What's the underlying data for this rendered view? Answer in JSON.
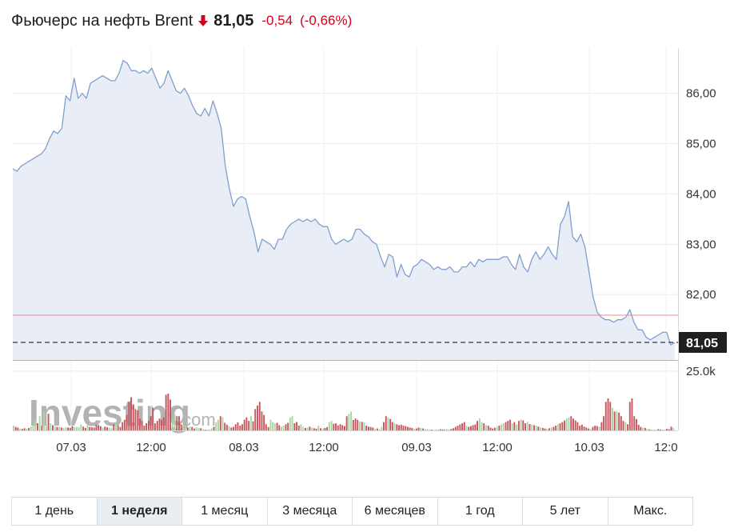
{
  "header": {
    "title": "Фьючерс на нефть Brent",
    "direction_icon": "arrow-down-icon",
    "price": "81,05",
    "change": "-0,54",
    "change_pct": "(-0,66%)",
    "down_color": "#d0021b"
  },
  "watermark": {
    "brand": "Investing",
    "suffix": ".com"
  },
  "tabs": [
    {
      "label": "1 день",
      "active": false
    },
    {
      "label": "1 неделя",
      "active": true
    },
    {
      "label": "1 месяц",
      "active": false
    },
    {
      "label": "3 месяца",
      "active": false
    },
    {
      "label": "6 месяцев",
      "active": false
    },
    {
      "label": "1 год",
      "active": false
    },
    {
      "label": "5 лет",
      "active": false
    },
    {
      "label": "Макс.",
      "active": false
    }
  ],
  "chart_data": {
    "type": "area",
    "price_ylim": [
      80.7,
      86.9
    ],
    "y_ticks": [
      "86,00",
      "85,00",
      "84,00",
      "83,00",
      "82,00"
    ],
    "y_tick_values": [
      86,
      85,
      84,
      83,
      82
    ],
    "current_price_label": "81,05",
    "current_price": 81.05,
    "reference_price": 81.59,
    "x_tick_labels": [
      "07.03",
      "12:00",
      "08.03",
      "12:00",
      "09.03",
      "12:00",
      "10.03",
      "12:0"
    ],
    "line_color": "#7f9fcf",
    "fill_color": "#e9eef6",
    "price": [
      84.5,
      84.45,
      84.55,
      84.6,
      84.65,
      84.7,
      84.75,
      84.8,
      84.9,
      85.1,
      85.25,
      85.2,
      85.3,
      85.95,
      85.85,
      86.3,
      85.9,
      86.0,
      85.9,
      86.2,
      86.25,
      86.3,
      86.35,
      86.3,
      86.25,
      86.25,
      86.4,
      86.65,
      86.6,
      86.45,
      86.45,
      86.4,
      86.45,
      86.4,
      86.5,
      86.3,
      86.1,
      86.2,
      86.45,
      86.25,
      86.05,
      86.0,
      86.1,
      85.95,
      85.75,
      85.6,
      85.55,
      85.7,
      85.55,
      85.85,
      85.6,
      85.3,
      84.55,
      84.1,
      83.75,
      83.9,
      83.95,
      83.9,
      83.55,
      83.25,
      82.85,
      83.1,
      83.05,
      83.0,
      82.9,
      83.1,
      83.1,
      83.3,
      83.4,
      83.45,
      83.5,
      83.45,
      83.5,
      83.45,
      83.5,
      83.4,
      83.35,
      83.35,
      83.1,
      83.0,
      83.05,
      83.1,
      83.05,
      83.1,
      83.3,
      83.3,
      83.2,
      83.15,
      83.05,
      83.0,
      82.75,
      82.55,
      82.8,
      82.75,
      82.35,
      82.6,
      82.4,
      82.35,
      82.55,
      82.6,
      82.7,
      82.65,
      82.6,
      82.5,
      82.55,
      82.5,
      82.5,
      82.55,
      82.45,
      82.45,
      82.55,
      82.55,
      82.65,
      82.55,
      82.7,
      82.65,
      82.7,
      82.7,
      82.7,
      82.7,
      82.75,
      82.75,
      82.6,
      82.5,
      82.8,
      82.55,
      82.45,
      82.7,
      82.85,
      82.7,
      82.8,
      82.95,
      82.8,
      82.7,
      83.4,
      83.55,
      83.85,
      83.15,
      83.05,
      83.2,
      82.95,
      82.45,
      81.95,
      81.65,
      81.55,
      81.5,
      81.5,
      81.45,
      81.5,
      81.5,
      81.55,
      81.7,
      81.45,
      81.3,
      81.3,
      81.15,
      81.1,
      81.15,
      81.2,
      81.25,
      81.25,
      81.0,
      81.05
    ],
    "volume_ylim": [
      0,
      29000
    ],
    "volume_tick": "25.0k",
    "volume_tick_value": 25000,
    "volume_up_color": "#a8d5a0",
    "volume_down_color": "#c8555d",
    "volume": [
      [
        2000,
        1
      ],
      [
        1500,
        0
      ],
      [
        1200,
        0
      ],
      [
        800,
        1
      ],
      [
        600,
        0
      ],
      [
        900,
        0
      ],
      [
        700,
        1
      ],
      [
        1000,
        0
      ],
      [
        1600,
        1
      ],
      [
        2500,
        1
      ],
      [
        4000,
        1
      ],
      [
        3000,
        0
      ],
      [
        6000,
        1
      ],
      [
        2000,
        0
      ],
      [
        8000,
        1
      ],
      [
        2500,
        1
      ],
      [
        7000,
        0
      ],
      [
        3000,
        1
      ],
      [
        2200,
        0
      ],
      [
        1800,
        1
      ],
      [
        1500,
        0
      ],
      [
        1600,
        1
      ],
      [
        1200,
        0
      ],
      [
        1000,
        1
      ],
      [
        1400,
        1
      ],
      [
        1200,
        0
      ],
      [
        1000,
        0
      ],
      [
        1800,
        0
      ],
      [
        1400,
        1
      ],
      [
        1500,
        1
      ],
      [
        1300,
        1
      ],
      [
        2500,
        1
      ],
      [
        1600,
        0
      ],
      [
        1000,
        0
      ],
      [
        2300,
        1
      ],
      [
        1500,
        0
      ],
      [
        1300,
        0
      ],
      [
        1200,
        0
      ],
      [
        2400,
        0
      ],
      [
        2300,
        0
      ],
      [
        1800,
        0
      ],
      [
        1200,
        1
      ],
      [
        1600,
        0
      ],
      [
        1300,
        0
      ],
      [
        1200,
        1
      ],
      [
        1000,
        1
      ],
      [
        2500,
        0
      ],
      [
        3400,
        1
      ],
      [
        2200,
        0
      ],
      [
        1400,
        0
      ],
      [
        3500,
        0
      ],
      [
        4500,
        0
      ],
      [
        6500,
        0
      ],
      [
        12000,
        0
      ],
      [
        14000,
        0
      ],
      [
        11000,
        0
      ],
      [
        9000,
        0
      ],
      [
        8500,
        0
      ],
      [
        5000,
        0
      ],
      [
        4000,
        0
      ],
      [
        2000,
        0
      ],
      [
        3000,
        0
      ],
      [
        4000,
        0
      ],
      [
        6000,
        0
      ],
      [
        9500,
        0
      ],
      [
        3000,
        0
      ],
      [
        4000,
        0
      ],
      [
        5000,
        0
      ],
      [
        4500,
        0
      ],
      [
        5500,
        0
      ],
      [
        15000,
        0
      ],
      [
        15500,
        0
      ],
      [
        13000,
        0
      ],
      [
        4800,
        1
      ],
      [
        6500,
        1
      ],
      [
        6000,
        0
      ],
      [
        6000,
        0
      ],
      [
        2500,
        0
      ],
      [
        2200,
        1
      ],
      [
        1800,
        1
      ],
      [
        1200,
        0
      ],
      [
        1600,
        1
      ],
      [
        1400,
        0
      ],
      [
        800,
        0
      ],
      [
        1200,
        1
      ],
      [
        1000,
        1
      ],
      [
        900,
        0
      ],
      [
        500,
        1
      ],
      [
        300,
        0
      ],
      [
        300,
        1
      ],
      [
        400,
        1
      ],
      [
        900,
        1
      ],
      [
        1500,
        0
      ],
      [
        3500,
        1
      ],
      [
        4500,
        1
      ],
      [
        6000,
        0
      ],
      [
        5500,
        1
      ],
      [
        3200,
        0
      ],
      [
        2400,
        0
      ],
      [
        1800,
        1
      ],
      [
        1200,
        0
      ],
      [
        1500,
        0
      ],
      [
        2600,
        0
      ],
      [
        3400,
        0
      ],
      [
        2000,
        0
      ],
      [
        2600,
        0
      ],
      [
        4500,
        0
      ],
      [
        5500,
        0
      ],
      [
        4000,
        0
      ],
      [
        6000,
        1
      ],
      [
        3800,
        0
      ],
      [
        9000,
        0
      ],
      [
        10500,
        0
      ],
      [
        12000,
        0
      ],
      [
        8000,
        0
      ],
      [
        6500,
        0
      ],
      [
        2600,
        0
      ],
      [
        1400,
        0
      ],
      [
        4500,
        1
      ],
      [
        3500,
        1
      ],
      [
        3000,
        1
      ],
      [
        3200,
        0
      ],
      [
        2200,
        0
      ],
      [
        1600,
        1
      ],
      [
        2000,
        1
      ],
      [
        2600,
        0
      ],
      [
        3200,
        0
      ],
      [
        5500,
        1
      ],
      [
        6000,
        1
      ],
      [
        3000,
        0
      ],
      [
        3500,
        0
      ],
      [
        2000,
        0
      ],
      [
        2600,
        1
      ],
      [
        1500,
        1
      ],
      [
        1000,
        0
      ],
      [
        1200,
        1
      ],
      [
        1600,
        0
      ],
      [
        1100,
        1
      ],
      [
        900,
        0
      ],
      [
        700,
        0
      ],
      [
        2000,
        1
      ],
      [
        900,
        0
      ],
      [
        800,
        1
      ],
      [
        1000,
        0
      ],
      [
        1400,
        0
      ],
      [
        3500,
        1
      ],
      [
        4000,
        1
      ],
      [
        2800,
        0
      ],
      [
        3000,
        0
      ],
      [
        2100,
        0
      ],
      [
        2600,
        0
      ],
      [
        2200,
        0
      ],
      [
        1800,
        0
      ],
      [
        6000,
        0
      ],
      [
        7000,
        1
      ],
      [
        8000,
        1
      ],
      [
        4400,
        0
      ],
      [
        5000,
        0
      ],
      [
        4500,
        0
      ],
      [
        3800,
        1
      ],
      [
        3600,
        0
      ],
      [
        3400,
        1
      ],
      [
        2000,
        0
      ],
      [
        1600,
        0
      ],
      [
        1400,
        0
      ],
      [
        1200,
        0
      ],
      [
        600,
        1
      ],
      [
        800,
        0
      ],
      [
        400,
        1
      ],
      [
        1500,
        1
      ],
      [
        3500,
        0
      ],
      [
        6000,
        0
      ],
      [
        5500,
        1
      ],
      [
        4800,
        0
      ],
      [
        3500,
        0
      ],
      [
        3000,
        1
      ],
      [
        2600,
        0
      ],
      [
        2200,
        0
      ],
      [
        2400,
        0
      ],
      [
        2000,
        0
      ],
      [
        1800,
        0
      ],
      [
        1500,
        0
      ],
      [
        1200,
        0
      ],
      [
        1000,
        0
      ],
      [
        600,
        1
      ],
      [
        800,
        0
      ],
      [
        1200,
        0
      ],
      [
        1000,
        1
      ],
      [
        800,
        0
      ],
      [
        600,
        1
      ],
      [
        500,
        1
      ],
      [
        400,
        1
      ],
      [
        300,
        0
      ],
      [
        200,
        1
      ],
      [
        400,
        1
      ],
      [
        300,
        1
      ],
      [
        500,
        0
      ],
      [
        400,
        0
      ],
      [
        600,
        1
      ],
      [
        500,
        1
      ],
      [
        400,
        1
      ],
      [
        600,
        0
      ],
      [
        900,
        0
      ],
      [
        1500,
        0
      ],
      [
        2000,
        0
      ],
      [
        2500,
        0
      ],
      [
        3000,
        0
      ],
      [
        3500,
        0
      ],
      [
        2000,
        1
      ],
      [
        1500,
        0
      ],
      [
        1800,
        0
      ],
      [
        2200,
        0
      ],
      [
        2500,
        0
      ],
      [
        4000,
        0
      ],
      [
        5000,
        1
      ],
      [
        3500,
        1
      ],
      [
        3000,
        0
      ],
      [
        2200,
        1
      ],
      [
        2000,
        0
      ],
      [
        1200,
        0
      ],
      [
        800,
        0
      ],
      [
        1100,
        0
      ],
      [
        1500,
        1
      ],
      [
        2000,
        0
      ],
      [
        2500,
        1
      ],
      [
        3000,
        1
      ],
      [
        3500,
        0
      ],
      [
        4000,
        0
      ],
      [
        4500,
        0
      ],
      [
        3000,
        1
      ],
      [
        3500,
        0
      ],
      [
        2500,
        1
      ],
      [
        4000,
        0
      ],
      [
        4600,
        1
      ],
      [
        4200,
        0
      ],
      [
        3000,
        0
      ],
      [
        3600,
        1
      ],
      [
        2700,
        0
      ],
      [
        2400,
        1
      ],
      [
        2200,
        0
      ],
      [
        2000,
        1
      ],
      [
        1600,
        0
      ],
      [
        1200,
        1
      ],
      [
        1000,
        0
      ],
      [
        800,
        0
      ],
      [
        700,
        1
      ],
      [
        900,
        0
      ],
      [
        1200,
        1
      ],
      [
        1500,
        0
      ],
      [
        2000,
        0
      ],
      [
        2600,
        1
      ],
      [
        3000,
        0
      ],
      [
        3500,
        0
      ],
      [
        4200,
        0
      ],
      [
        5000,
        1
      ],
      [
        5500,
        1
      ],
      [
        6000,
        0
      ],
      [
        5000,
        0
      ],
      [
        4200,
        0
      ],
      [
        3500,
        0
      ],
      [
        2000,
        0
      ],
      [
        2400,
        0
      ],
      [
        1600,
        0
      ],
      [
        1200,
        0
      ],
      [
        800,
        0
      ],
      [
        600,
        1
      ],
      [
        1500,
        0
      ],
      [
        2000,
        0
      ],
      [
        1800,
        0
      ],
      [
        1500,
        1
      ],
      [
        3500,
        0
      ],
      [
        6000,
        0
      ],
      [
        12000,
        0
      ],
      [
        13500,
        0
      ],
      [
        12000,
        0
      ],
      [
        9500,
        1
      ],
      [
        8000,
        0
      ],
      [
        8000,
        1
      ],
      [
        7500,
        0
      ],
      [
        6000,
        0
      ],
      [
        4000,
        0
      ],
      [
        3500,
        1
      ],
      [
        2600,
        0
      ],
      [
        12000,
        0
      ],
      [
        13500,
        0
      ],
      [
        6000,
        0
      ],
      [
        4800,
        0
      ],
      [
        2400,
        0
      ],
      [
        1500,
        0
      ],
      [
        1100,
        1
      ],
      [
        1000,
        0
      ],
      [
        700,
        1
      ],
      [
        400,
        0
      ],
      [
        300,
        1
      ],
      [
        400,
        1
      ],
      [
        200,
        1
      ],
      [
        500,
        0
      ],
      [
        400,
        0
      ],
      [
        300,
        1
      ],
      [
        300,
        1
      ],
      [
        600,
        0
      ],
      [
        500,
        0
      ],
      [
        1600,
        0
      ],
      [
        1000,
        1
      ]
    ]
  }
}
